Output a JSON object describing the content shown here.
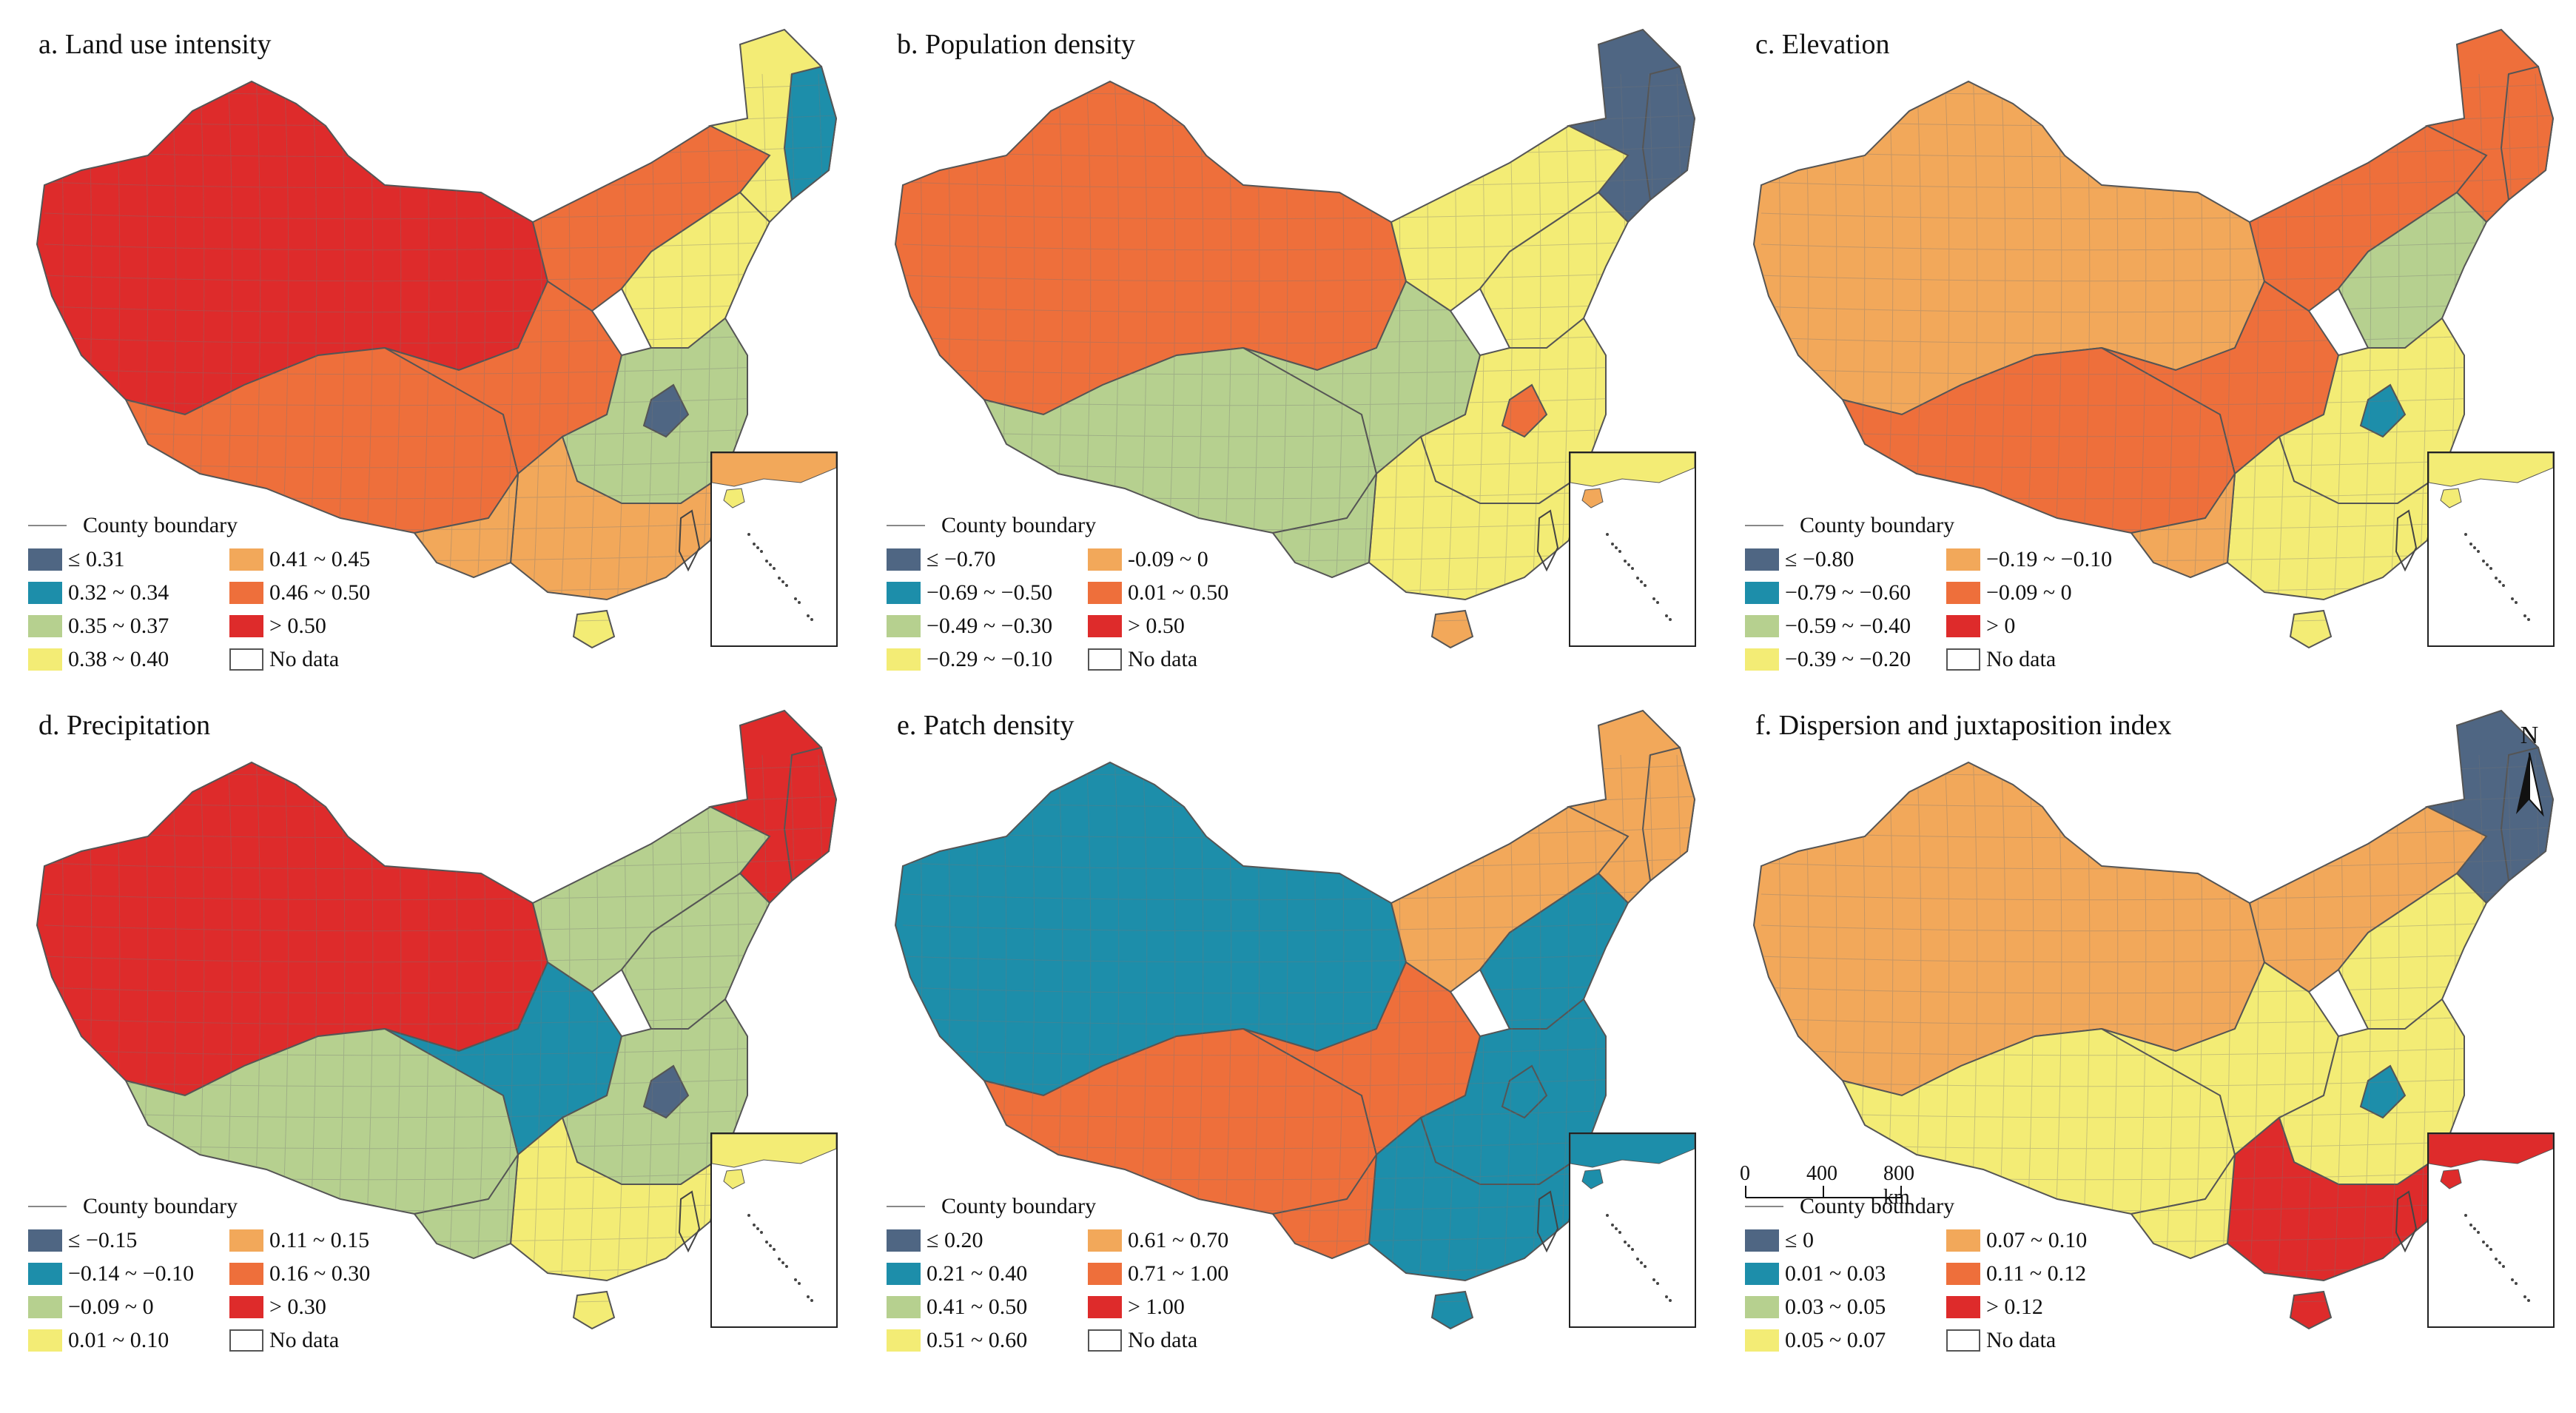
{
  "boundary_label": "County boundary",
  "scale": {
    "labels": [
      "0",
      "400",
      "800 km"
    ]
  },
  "north": {
    "label": "N"
  },
  "panels": [
    {
      "title": "a. Land use intensity",
      "legend": [
        {
          "label": "≤ 0.31",
          "color": "#4f6683"
        },
        {
          "label": "0.32 ~ 0.34",
          "color": "#1d8eaa"
        },
        {
          "label": "0.35 ~ 0.37",
          "color": "#b6d08f"
        },
        {
          "label": "0.38 ~ 0.40",
          "color": "#f3ec75"
        },
        {
          "label": "0.41 ~ 0.45",
          "color": "#f2a85a"
        },
        {
          "label": "0.46 ~ 0.50",
          "color": "#ee6f3b"
        },
        {
          "label": "> 0.50",
          "color": "#de2b2b"
        },
        {
          "label": "No data",
          "color": "#ffffff"
        }
      ]
    },
    {
      "title": "b. Population density",
      "legend": [
        {
          "label": "≤ −0.70",
          "color": "#4f6683"
        },
        {
          "label": "−0.69 ~ −0.50",
          "color": "#1d8eaa"
        },
        {
          "label": "−0.49 ~ −0.30",
          "color": "#b6d08f"
        },
        {
          "label": "−0.29 ~ −0.10",
          "color": "#f3ec75"
        },
        {
          "label": "-0.09 ~ 0",
          "color": "#f2a85a"
        },
        {
          "label": "0.01 ~ 0.50",
          "color": "#ee6f3b"
        },
        {
          "label": "> 0.50",
          "color": "#de2b2b"
        },
        {
          "label": "No data",
          "color": "#ffffff"
        }
      ]
    },
    {
      "title": "c. Elevation",
      "legend": [
        {
          "label": "≤ −0.80",
          "color": "#4f6683"
        },
        {
          "label": "−0.79 ~ −0.60",
          "color": "#1d8eaa"
        },
        {
          "label": "−0.59 ~ −0.40",
          "color": "#b6d08f"
        },
        {
          "label": "−0.39 ~ −0.20",
          "color": "#f3ec75"
        },
        {
          "label": "−0.19 ~ −0.10",
          "color": "#f2a85a"
        },
        {
          "label": "−0.09 ~ 0",
          "color": "#ee6f3b"
        },
        {
          "label": "> 0",
          "color": "#de2b2b"
        },
        {
          "label": "No data",
          "color": "#ffffff"
        }
      ]
    },
    {
      "title": "d. Precipitation",
      "legend": [
        {
          "label": "≤ −0.15",
          "color": "#4f6683"
        },
        {
          "label": "−0.14 ~ −0.10",
          "color": "#1d8eaa"
        },
        {
          "label": "−0.09 ~ 0",
          "color": "#b6d08f"
        },
        {
          "label": "0.01 ~ 0.10",
          "color": "#f3ec75"
        },
        {
          "label": "0.11 ~ 0.15",
          "color": "#f2a85a"
        },
        {
          "label": "0.16 ~ 0.30",
          "color": "#ee6f3b"
        },
        {
          "label": "> 0.30",
          "color": "#de2b2b"
        },
        {
          "label": "No data",
          "color": "#ffffff"
        }
      ]
    },
    {
      "title": "e. Patch density",
      "legend": [
        {
          "label": "≤ 0.20",
          "color": "#4f6683"
        },
        {
          "label": "0.21 ~ 0.40",
          "color": "#1d8eaa"
        },
        {
          "label": "0.41 ~ 0.50",
          "color": "#b6d08f"
        },
        {
          "label": "0.51 ~ 0.60",
          "color": "#f3ec75"
        },
        {
          "label": "0.61 ~ 0.70",
          "color": "#f2a85a"
        },
        {
          "label": "0.71 ~ 1.00",
          "color": "#ee6f3b"
        },
        {
          "label": "> 1.00",
          "color": "#de2b2b"
        },
        {
          "label": "No data",
          "color": "#ffffff"
        }
      ]
    },
    {
      "title": "f. Dispersion and juxtaposition index",
      "legend": [
        {
          "label": "≤ 0",
          "color": "#4f6683"
        },
        {
          "label": "0.01 ~ 0.03",
          "color": "#1d8eaa"
        },
        {
          "label": "0.03 ~ 0.05",
          "color": "#b6d08f"
        },
        {
          "label": "0.05 ~ 0.07",
          "color": "#f3ec75"
        },
        {
          "label": "0.07 ~ 0.10",
          "color": "#f2a85a"
        },
        {
          "label": "0.11 ~ 0.12",
          "color": "#ee6f3b"
        },
        {
          "label": "> 0.12",
          "color": "#de2b2b"
        },
        {
          "label": "No data",
          "color": "#ffffff"
        }
      ]
    }
  ]
}
